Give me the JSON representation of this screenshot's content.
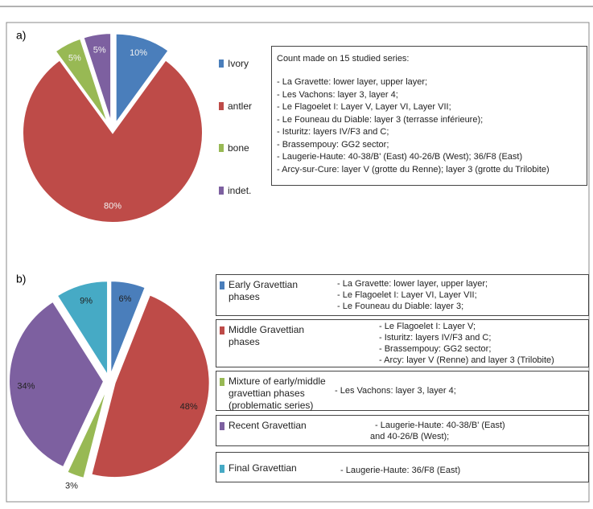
{
  "chart_data": [
    {
      "type": "pie",
      "label": "a)",
      "categories": [
        "Ivory",
        "antler",
        "bone",
        "indet."
      ],
      "values": [
        10,
        80,
        5,
        5
      ],
      "value_labels": [
        "10%",
        "80%",
        "5%",
        "5%"
      ],
      "colors": [
        "#4a7ebb",
        "#be4b48",
        "#98b954",
        "#7d60a0"
      ],
      "explode": [
        true,
        false,
        true,
        true
      ],
      "label_color": "#f2f2f2",
      "note": {
        "title": "Count made on 15 studied series:",
        "lines": [
          "- La Gravette: lower layer, upper layer;",
          "- Les Vachons: layer 3, layer 4;",
          "- Le Flagoelet I:  Layer V, Layer VI, Layer VII;",
          "- Le Founeau du Diable: layer 3 (terrasse inférieure);",
          "- Isturitz: layers IV/F3 and C;",
          "- Brassempouy: GG2 sector;",
          "- Laugerie-Haute: 40-38/B' (East) 40-26/B (West); 36/F8 (East)",
          "- Arcy-sur-Cure: layer V (grotte du Renne); layer 3 (grotte du Trilobite)"
        ]
      }
    },
    {
      "type": "pie",
      "label": "b)",
      "categories": [
        "Early Gravettian phases",
        "Middle Gravettian phases",
        "Mixture of early/middle gravettian phases (problematic series)",
        "Recent Gravettian",
        "Final Gravettian"
      ],
      "values": [
        6,
        48,
        3,
        34,
        9
      ],
      "value_labels": [
        "6%",
        "48%",
        "3%",
        "34%",
        "9%"
      ],
      "colors": [
        "#4a7ebb",
        "#be4b48",
        "#98b954",
        "#7d60a0",
        "#46aac5"
      ],
      "explode": [
        true,
        true,
        true,
        true,
        true
      ],
      "label_color": "#222222",
      "details": [
        [
          "- La Gravette: lower layer, upper layer;",
          "- Le Flagoelet I:  Layer VI, Layer VII;",
          "- Le Founeau du Diable: layer 3;"
        ],
        [
          "- Le Flagoelet I:  Layer V;",
          "- Isturitz: layers IV/F3 and C;",
          "- Brassempouy: GG2 sector;",
          "- Arcy: layer V (Renne) and layer 3 (Trilobite)"
        ],
        [
          "- Les Vachons: layer 3, layer 4;"
        ],
        [
          "- Laugerie-Haute: 40-38/B' (East)",
          "and 40-26/B (West);"
        ],
        [
          "- Laugerie-Haute: 36/F8 (East)"
        ]
      ]
    }
  ]
}
